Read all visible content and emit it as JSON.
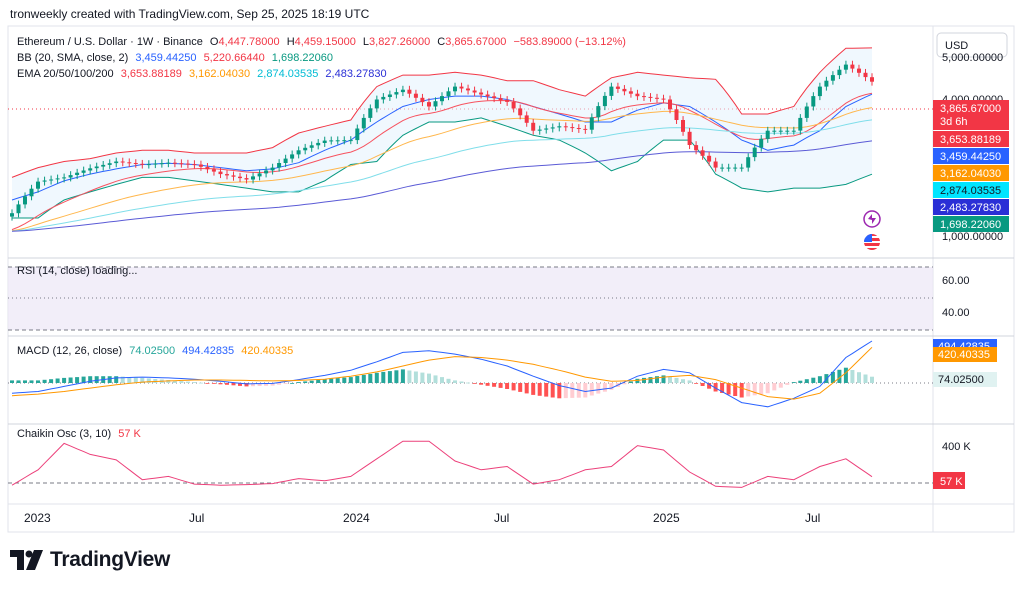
{
  "header": {
    "credit": "tronweekly created with TradingView.com, Sep 25, 2025 18:19 UTC",
    "symbol": "Ethereum / U.S. Dollar · 1W · Binance",
    "ohlc": {
      "o_label": "O",
      "o": "4,447.78000",
      "h_label": "H",
      "h": "4,459.15000",
      "l_label": "L",
      "l": "3,827.26000",
      "c_label": "C",
      "c": "3,865.67000",
      "change": "−583.89000 (−13.12%)"
    },
    "bb_title": "BB (20, SMA, close, 2)",
    "bb_values": [
      "3,459.44250",
      "5,220.66440",
      "1,698.22060"
    ],
    "ema_title": "EMA 20/50/100/200",
    "ema_values": [
      "3,653.88189",
      "3,162.04030",
      "2,874.03535",
      "2,483.27830"
    ],
    "currency_button": "USD"
  },
  "price_axis": {
    "ticks": [
      "5,000.00000",
      "4,000.00000",
      "1,000.00000"
    ],
    "countdown": "3d 6h",
    "tags": [
      {
        "text": "3,865.67000",
        "bg": "#f23645",
        "fg": "#ffffff"
      },
      {
        "text": "3,653.88189",
        "bg": "#f23645",
        "fg": "#ffffff"
      },
      {
        "text": "3,459.44250",
        "bg": "#2962ff",
        "fg": "#ffffff"
      },
      {
        "text": "3,162.04030",
        "bg": "#ff9800",
        "fg": "#ffffff"
      },
      {
        "text": "2,874.03535",
        "bg": "#00e5ff",
        "fg": "#131722"
      },
      {
        "text": "2,483.27830",
        "bg": "#2a2fd6",
        "fg": "#ffffff"
      },
      {
        "text": "1,698.22060",
        "bg": "#089981",
        "fg": "#ffffff"
      }
    ]
  },
  "rsi": {
    "title": "RSI (14, close) loading...",
    "ticks": [
      "60.00",
      "40.00"
    ]
  },
  "macd": {
    "title": "MACD (12, 26, close)",
    "values": [
      "74.02500",
      "494.42835",
      "420.40335"
    ],
    "tags": [
      {
        "text": "494.42835",
        "bg": "#2962ff",
        "fg": "#ffffff"
      },
      {
        "text": "420.40335",
        "bg": "#ff9800",
        "fg": "#ffffff"
      },
      {
        "text": "74.02500",
        "bg": "#e0f2f1",
        "fg": "#131722"
      }
    ]
  },
  "chaikin": {
    "title": "Chaikin Osc (3, 10)",
    "value": "57 K",
    "tick": "400 K",
    "tag": {
      "text": "57 K",
      "bg": "#f23645",
      "fg": "#ffffff"
    }
  },
  "time_axis": [
    "2023",
    "Jul",
    "2024",
    "Jul",
    "2025",
    "Jul"
  ],
  "footer": {
    "brand": "TradingView"
  },
  "colors": {
    "up": "#089981",
    "down": "#f23645",
    "bb_upper": "#f23645",
    "bb_basis": "#2962ff",
    "bb_lower": "#089981",
    "bb_fill": "#e3f2fd",
    "ema20": "#f7525f",
    "ema50": "#ffb74d",
    "ema100": "#80deea",
    "ema200": "#5b5bd6",
    "rsi_band": "#ede7f6",
    "macd": "#2962ff",
    "signal": "#ff9800",
    "chaikin": "#ec407a"
  },
  "chart_data": {
    "type": "candlestick",
    "timeframe": "1W",
    "y_scale": "log",
    "ylim": [
      850,
      5600
    ],
    "x": [
      "2022-12",
      "2023-01",
      "2023-02",
      "2023-03",
      "2023-04",
      "2023-05",
      "2023-06",
      "2023-07",
      "2023-08",
      "2023-09",
      "2023-10",
      "2023-11",
      "2023-12",
      "2024-01",
      "2024-02",
      "2024-03",
      "2024-04",
      "2024-05",
      "2024-06",
      "2024-07",
      "2024-08",
      "2024-09",
      "2024-10",
      "2024-11",
      "2024-12",
      "2025-01",
      "2025-02",
      "2025-03",
      "2025-04",
      "2025-05",
      "2025-06",
      "2025-07",
      "2025-08",
      "2025-09"
    ],
    "close": [
      1200,
      1590,
      1650,
      1790,
      1900,
      1850,
      1880,
      1850,
      1700,
      1620,
      1800,
      2100,
      2290,
      2300,
      3300,
      3600,
      3100,
      3700,
      3450,
      3230,
      2500,
      2600,
      2520,
      3700,
      3400,
      3300,
      2200,
      1800,
      1800,
      2500,
      2500,
      3700,
      4500,
      3865.67
    ],
    "bb_upper": [
      1650,
      1800,
      1900,
      1950,
      2050,
      2100,
      2100,
      2050,
      2050,
      2050,
      2150,
      2450,
      2600,
      2750,
      3700,
      4100,
      4100,
      4200,
      4100,
      3900,
      3900,
      3600,
      3400,
      4000,
      4200,
      4100,
      4000,
      3950,
      2900,
      2900,
      3100,
      4200,
      5200,
      5220.66
    ],
    "bb_basis": [
      1350,
      1450,
      1600,
      1700,
      1780,
      1850,
      1870,
      1850,
      1800,
      1750,
      1780,
      1880,
      2100,
      2300,
      2700,
      3100,
      3300,
      3400,
      3400,
      3300,
      3100,
      2900,
      2700,
      2700,
      3000,
      3200,
      3100,
      2700,
      2300,
      2100,
      2200,
      2500,
      3100,
      3459.44
    ],
    "bb_lower": [
      1150,
      1150,
      1350,
      1450,
      1550,
      1650,
      1650,
      1600,
      1550,
      1500,
      1450,
      1450,
      1600,
      1850,
      1900,
      2400,
      2700,
      2700,
      2800,
      2600,
      2400,
      2300,
      2050,
      1750,
      1900,
      2300,
      2300,
      1700,
      1500,
      1450,
      1500,
      1500,
      1550,
      1698.22
    ],
    "macd": [
      -120,
      -100,
      -40,
      20,
      60,
      70,
      60,
      45,
      20,
      -10,
      -5,
      40,
      90,
      150,
      250,
      360,
      380,
      340,
      280,
      200,
      80,
      -30,
      -100,
      -60,
      80,
      160,
      120,
      -60,
      -230,
      -280,
      -180,
      -40,
      300,
      494.43
    ],
    "signal": [
      -150,
      -130,
      -100,
      -60,
      -20,
      10,
      25,
      35,
      35,
      30,
      25,
      30,
      45,
      80,
      130,
      200,
      270,
      310,
      300,
      270,
      220,
      150,
      70,
      20,
      30,
      70,
      90,
      40,
      -60,
      -160,
      -190,
      -120,
      120,
      420.4
    ],
    "chaikin_k": [
      -20,
      120,
      360,
      260,
      210,
      30,
      60,
      -10,
      -20,
      -15,
      -5,
      40,
      20,
      60,
      220,
      380,
      380,
      200,
      120,
      150,
      -10,
      30,
      120,
      150,
      340,
      300,
      100,
      -30,
      -40,
      60,
      30,
      150,
      220,
      57
    ]
  }
}
